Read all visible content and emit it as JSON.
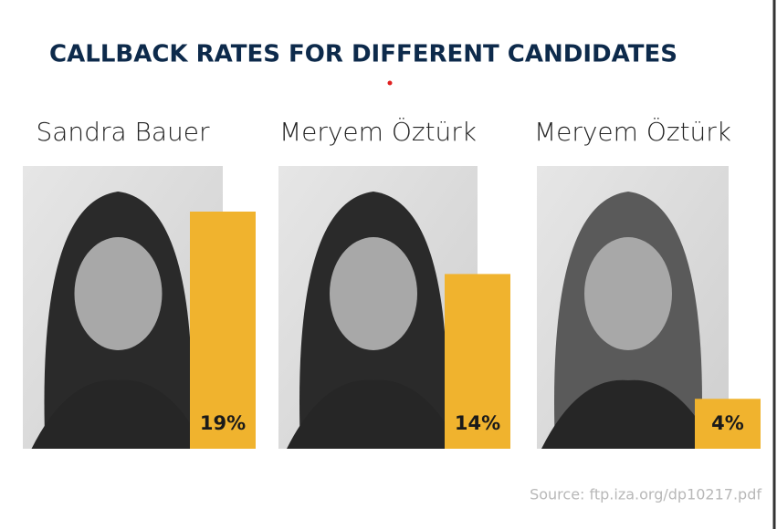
{
  "chart_data": {
    "type": "bar",
    "title": "CALLBACK RATES FOR DIFFERENT CANDIDATES",
    "categories": [
      "Sandra Bauer",
      "Meryem Öztürk",
      "Meryem Öztürk"
    ],
    "values": [
      19,
      14,
      4
    ],
    "value_labels": [
      "19%",
      "14%",
      "4%"
    ],
    "color": "#f0b32e",
    "source": "Source: ftp.iza.org/dp10217.pdf"
  }
}
